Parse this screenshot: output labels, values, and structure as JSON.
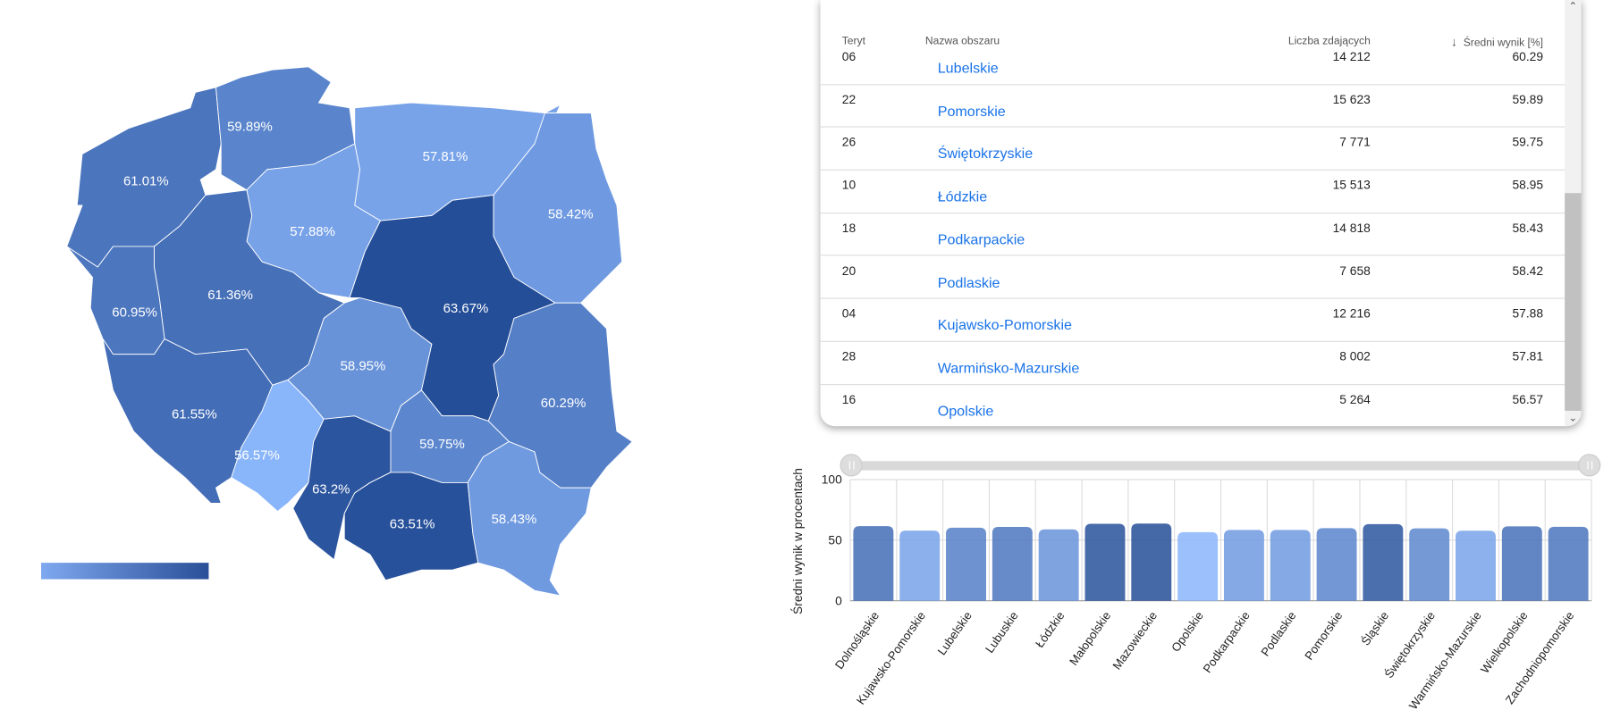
{
  "map": {
    "regions": [
      {
        "id": "zachodniopomorskie",
        "label": "61.01%",
        "value": 61.01
      },
      {
        "id": "pomorskie",
        "label": "59.89%",
        "value": 59.89
      },
      {
        "id": "warminsko-mazurskie",
        "label": "57.81%",
        "value": 57.81
      },
      {
        "id": "podlaskie",
        "label": "58.42%",
        "value": 58.42
      },
      {
        "id": "kujawsko-pomorskie",
        "label": "57.88%",
        "value": 57.88
      },
      {
        "id": "wielkopolskie",
        "label": "61.36%",
        "value": 61.36
      },
      {
        "id": "lubuskie",
        "label": "60.95%",
        "value": 60.95
      },
      {
        "id": "dolnoslaskie",
        "label": "61.55%",
        "value": 61.55
      },
      {
        "id": "opolskie",
        "label": "56.57%",
        "value": 56.57
      },
      {
        "id": "slaskie",
        "label": "63.2%",
        "value": 63.2
      },
      {
        "id": "lodzkie",
        "label": "58.95%",
        "value": 58.95
      },
      {
        "id": "mazowieckie",
        "label": "63.67%",
        "value": 63.67
      },
      {
        "id": "lubelskie",
        "label": "60.29%",
        "value": 60.29
      },
      {
        "id": "swietokrzyskie",
        "label": "59.75%",
        "value": 59.75
      },
      {
        "id": "malopolskie",
        "label": "63.51%",
        "value": 63.51
      },
      {
        "id": "podkarpackie",
        "label": "58.43%",
        "value": 58.43
      }
    ],
    "color_min": "#8ab6fb",
    "color_max": "#254e98"
  },
  "table": {
    "headers": {
      "teryt": "Teryt",
      "name": "Nazwa obszaru",
      "count": "Liczba zdających",
      "score": "Średni wynik [%]"
    },
    "rows": [
      {
        "teryt": "06",
        "name": "Lubelskie",
        "count": "14 212",
        "score": "60.29"
      },
      {
        "teryt": "22",
        "name": "Pomorskie",
        "count": "15 623",
        "score": "59.89"
      },
      {
        "teryt": "26",
        "name": "Świętokrzyskie",
        "count": "7 771",
        "score": "59.75"
      },
      {
        "teryt": "10",
        "name": "Łódzkie",
        "count": "15 513",
        "score": "58.95"
      },
      {
        "teryt": "18",
        "name": "Podkarpackie",
        "count": "14 818",
        "score": "58.43"
      },
      {
        "teryt": "20",
        "name": "Podlaskie",
        "count": "7 658",
        "score": "58.42"
      },
      {
        "teryt": "04",
        "name": "Kujawsko-Pomorskie",
        "count": "12 216",
        "score": "57.88"
      },
      {
        "teryt": "28",
        "name": "Warmińsko-Mazurskie",
        "count": "8 002",
        "score": "57.81"
      },
      {
        "teryt": "16",
        "name": "Opolskie",
        "count": "5 264",
        "score": "56.57"
      }
    ]
  },
  "chart_data": {
    "type": "bar",
    "ylabel": "Średni wynik w procentach",
    "xlabel": "",
    "ylim": [
      0,
      100
    ],
    "yticks": [
      "0",
      "50",
      "100"
    ],
    "grid": true,
    "categories": [
      "Dolnośląskie",
      "Kujawsko-Pomorskie",
      "Lubelskie",
      "Lubuskie",
      "Łódzkie",
      "Małopolskie",
      "Mazowieckie",
      "Opolskie",
      "Podkarpackie",
      "Podlaskie",
      "Pomorskie",
      "Śląskie",
      "Świętokrzyskie",
      "Warmińsko-Mazurskie",
      "Wielkopolskie",
      "Zachodniopomorskie"
    ],
    "values": [
      61.55,
      57.88,
      60.29,
      60.95,
      58.95,
      63.51,
      63.67,
      56.57,
      58.43,
      58.42,
      59.89,
      63.2,
      59.75,
      57.81,
      61.36,
      61.01
    ]
  }
}
